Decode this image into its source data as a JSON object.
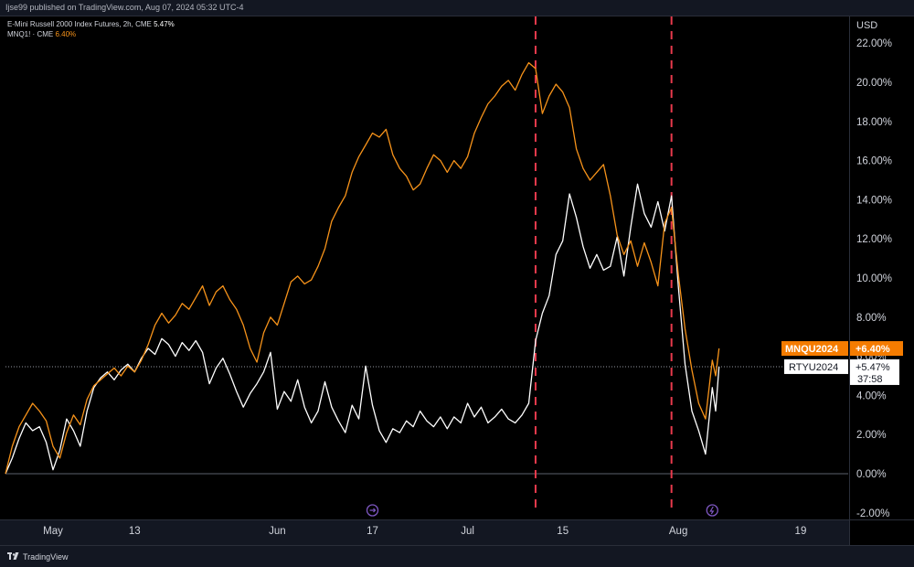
{
  "header": {
    "publish_line": "Ijse99 published on TradingView.com, Aug 07, 2024 05:32 UTC-4"
  },
  "legend": {
    "series1_title": "E-Mini Russell 2000 Index Futures, 2h, CME",
    "series1_value": "5.47%",
    "series2_title": "MNQ1! · CME",
    "series2_value": "6.40%"
  },
  "axis": {
    "currency": "USD"
  },
  "footer": {
    "brand": "TradingView"
  },
  "colors": {
    "background": "#000000",
    "rty_line": "#ffffff",
    "mnq_line": "#f7931a",
    "event_line": "#e83a4c",
    "zero_line": "#5d606b",
    "tag_orange": "#f57c00",
    "event_icon": "#7e57c2"
  },
  "chart_data": {
    "type": "line",
    "y_unit": "%",
    "ylim": [
      -2,
      22.5
    ],
    "yticks": [
      "22.00%",
      "20.00%",
      "18.00%",
      "16.00%",
      "14.00%",
      "12.00%",
      "10.00%",
      "8.00%",
      "6.00%",
      "4.00%",
      "2.00%",
      "0.00%",
      "-2.00%"
    ],
    "ytick_values": [
      22,
      20,
      18,
      16,
      14,
      12,
      10,
      8,
      6,
      4,
      2,
      0,
      -2
    ],
    "xlim": [
      "2024-04-24",
      "2024-08-26"
    ],
    "xticks": [
      {
        "label": "May",
        "date": "2024-05-01"
      },
      {
        "label": "13",
        "date": "2024-05-13"
      },
      {
        "label": "Jun",
        "date": "2024-06-03"
      },
      {
        "label": "17",
        "date": "2024-06-17"
      },
      {
        "label": "Jul",
        "date": "2024-07-01"
      },
      {
        "label": "15",
        "date": "2024-07-15"
      },
      {
        "label": "Aug",
        "date": "2024-08-01"
      },
      {
        "label": "19",
        "date": "2024-08-19"
      }
    ],
    "vertical_markers": [
      "2024-07-11",
      "2024-07-31"
    ],
    "event_icons": [
      "2024-06-17",
      "2024-08-06"
    ],
    "series": [
      {
        "name": "RTYU2024",
        "tag_value": "+5.47%",
        "countdown": "37:58",
        "last_value": 5.47,
        "color": "#ffffff",
        "points": [
          [
            "2024-04-24",
            0.0
          ],
          [
            "2024-04-25",
            0.8
          ],
          [
            "2024-04-26",
            1.8
          ],
          [
            "2024-04-27",
            2.6
          ],
          [
            "2024-04-28",
            2.2
          ],
          [
            "2024-04-29",
            2.4
          ],
          [
            "2024-04-30",
            1.6
          ],
          [
            "2024-05-01",
            0.2
          ],
          [
            "2024-05-02",
            1.2
          ],
          [
            "2024-05-03",
            2.8
          ],
          [
            "2024-05-04",
            2.2
          ],
          [
            "2024-05-05",
            1.4
          ],
          [
            "2024-05-06",
            3.2
          ],
          [
            "2024-05-07",
            4.4
          ],
          [
            "2024-05-08",
            4.9
          ],
          [
            "2024-05-09",
            5.2
          ],
          [
            "2024-05-10",
            4.8
          ],
          [
            "2024-05-11",
            5.3
          ],
          [
            "2024-05-12",
            5.6
          ],
          [
            "2024-05-13",
            5.2
          ],
          [
            "2024-05-14",
            5.9
          ],
          [
            "2024-05-15",
            6.4
          ],
          [
            "2024-05-16",
            6.1
          ],
          [
            "2024-05-17",
            6.9
          ],
          [
            "2024-05-18",
            6.6
          ],
          [
            "2024-05-19",
            6.0
          ],
          [
            "2024-05-20",
            6.7
          ],
          [
            "2024-05-21",
            6.3
          ],
          [
            "2024-05-22",
            6.8
          ],
          [
            "2024-05-23",
            6.2
          ],
          [
            "2024-05-24",
            4.6
          ],
          [
            "2024-05-25",
            5.4
          ],
          [
            "2024-05-26",
            5.9
          ],
          [
            "2024-05-27",
            5.1
          ],
          [
            "2024-05-28",
            4.2
          ],
          [
            "2024-05-29",
            3.4
          ],
          [
            "2024-05-30",
            4.1
          ],
          [
            "2024-05-31",
            4.6
          ],
          [
            "2024-06-01",
            5.2
          ],
          [
            "2024-06-02",
            6.2
          ],
          [
            "2024-06-03",
            3.3
          ],
          [
            "2024-06-04",
            4.2
          ],
          [
            "2024-06-05",
            3.7
          ],
          [
            "2024-06-06",
            4.8
          ],
          [
            "2024-06-07",
            3.4
          ],
          [
            "2024-06-08",
            2.6
          ],
          [
            "2024-06-09",
            3.2
          ],
          [
            "2024-06-10",
            4.7
          ],
          [
            "2024-06-11",
            3.4
          ],
          [
            "2024-06-12",
            2.7
          ],
          [
            "2024-06-13",
            2.1
          ],
          [
            "2024-06-14",
            3.5
          ],
          [
            "2024-06-15",
            2.8
          ],
          [
            "2024-06-16",
            5.5
          ],
          [
            "2024-06-17",
            3.5
          ],
          [
            "2024-06-18",
            2.2
          ],
          [
            "2024-06-19",
            1.6
          ],
          [
            "2024-06-20",
            2.3
          ],
          [
            "2024-06-21",
            2.1
          ],
          [
            "2024-06-22",
            2.7
          ],
          [
            "2024-06-23",
            2.4
          ],
          [
            "2024-06-24",
            3.2
          ],
          [
            "2024-06-25",
            2.7
          ],
          [
            "2024-06-26",
            2.4
          ],
          [
            "2024-06-27",
            2.9
          ],
          [
            "2024-06-28",
            2.3
          ],
          [
            "2024-06-29",
            2.9
          ],
          [
            "2024-06-30",
            2.6
          ],
          [
            "2024-07-01",
            3.6
          ],
          [
            "2024-07-02",
            2.9
          ],
          [
            "2024-07-03",
            3.4
          ],
          [
            "2024-07-04",
            2.6
          ],
          [
            "2024-07-05",
            2.9
          ],
          [
            "2024-07-06",
            3.3
          ],
          [
            "2024-07-07",
            2.8
          ],
          [
            "2024-07-08",
            2.6
          ],
          [
            "2024-07-09",
            3.0
          ],
          [
            "2024-07-10",
            3.6
          ],
          [
            "2024-07-11",
            6.8
          ],
          [
            "2024-07-12",
            8.2
          ],
          [
            "2024-07-13",
            9.1
          ],
          [
            "2024-07-14",
            11.2
          ],
          [
            "2024-07-15",
            11.9
          ],
          [
            "2024-07-16",
            14.3
          ],
          [
            "2024-07-17",
            13.1
          ],
          [
            "2024-07-18",
            11.6
          ],
          [
            "2024-07-19",
            10.5
          ],
          [
            "2024-07-20",
            11.2
          ],
          [
            "2024-07-21",
            10.4
          ],
          [
            "2024-07-22",
            10.6
          ],
          [
            "2024-07-23",
            12.1
          ],
          [
            "2024-07-24",
            10.1
          ],
          [
            "2024-07-25",
            12.6
          ],
          [
            "2024-07-26",
            14.8
          ],
          [
            "2024-07-27",
            13.3
          ],
          [
            "2024-07-28",
            12.6
          ],
          [
            "2024-07-29",
            13.9
          ],
          [
            "2024-07-30",
            12.4
          ],
          [
            "2024-07-31",
            14.2
          ],
          [
            "2024-08-01",
            9.6
          ],
          [
            "2024-08-02",
            5.6
          ],
          [
            "2024-08-03",
            3.2
          ],
          [
            "2024-08-04",
            2.2
          ],
          [
            "2024-08-05",
            1.0
          ],
          [
            "2024-08-06",
            4.4
          ],
          [
            "2024-08-06T12",
            3.2
          ],
          [
            "2024-08-07",
            5.47
          ]
        ]
      },
      {
        "name": "MNQU2024",
        "tag_value": "+6.40%",
        "last_value": 6.4,
        "color": "#f7931a",
        "points": [
          [
            "2024-04-24",
            0.0
          ],
          [
            "2024-04-25",
            1.4
          ],
          [
            "2024-04-26",
            2.4
          ],
          [
            "2024-04-27",
            3.0
          ],
          [
            "2024-04-28",
            3.6
          ],
          [
            "2024-04-29",
            3.2
          ],
          [
            "2024-04-30",
            2.7
          ],
          [
            "2024-05-01",
            1.4
          ],
          [
            "2024-05-02",
            0.8
          ],
          [
            "2024-05-03",
            2.1
          ],
          [
            "2024-05-04",
            3.0
          ],
          [
            "2024-05-05",
            2.5
          ],
          [
            "2024-05-06",
            3.8
          ],
          [
            "2024-05-07",
            4.5
          ],
          [
            "2024-05-08",
            4.8
          ],
          [
            "2024-05-09",
            5.1
          ],
          [
            "2024-05-10",
            5.4
          ],
          [
            "2024-05-11",
            5.0
          ],
          [
            "2024-05-12",
            5.5
          ],
          [
            "2024-05-13",
            5.2
          ],
          [
            "2024-05-14",
            5.8
          ],
          [
            "2024-05-15",
            6.6
          ],
          [
            "2024-05-16",
            7.6
          ],
          [
            "2024-05-17",
            8.2
          ],
          [
            "2024-05-18",
            7.7
          ],
          [
            "2024-05-19",
            8.1
          ],
          [
            "2024-05-20",
            8.7
          ],
          [
            "2024-05-21",
            8.4
          ],
          [
            "2024-05-22",
            9.0
          ],
          [
            "2024-05-23",
            9.6
          ],
          [
            "2024-05-24",
            8.6
          ],
          [
            "2024-05-25",
            9.3
          ],
          [
            "2024-05-26",
            9.6
          ],
          [
            "2024-05-27",
            8.9
          ],
          [
            "2024-05-28",
            8.4
          ],
          [
            "2024-05-29",
            7.6
          ],
          [
            "2024-05-30",
            6.4
          ],
          [
            "2024-05-31",
            5.7
          ],
          [
            "2024-06-01",
            7.2
          ],
          [
            "2024-06-02",
            8.0
          ],
          [
            "2024-06-03",
            7.6
          ],
          [
            "2024-06-04",
            8.7
          ],
          [
            "2024-06-05",
            9.8
          ],
          [
            "2024-06-06",
            10.1
          ],
          [
            "2024-06-07",
            9.7
          ],
          [
            "2024-06-08",
            9.9
          ],
          [
            "2024-06-09",
            10.6
          ],
          [
            "2024-06-10",
            11.5
          ],
          [
            "2024-06-11",
            12.9
          ],
          [
            "2024-06-12",
            13.6
          ],
          [
            "2024-06-13",
            14.2
          ],
          [
            "2024-06-14",
            15.4
          ],
          [
            "2024-06-15",
            16.2
          ],
          [
            "2024-06-16",
            16.8
          ],
          [
            "2024-06-17",
            17.4
          ],
          [
            "2024-06-18",
            17.2
          ],
          [
            "2024-06-19",
            17.6
          ],
          [
            "2024-06-20",
            16.3
          ],
          [
            "2024-06-21",
            15.6
          ],
          [
            "2024-06-22",
            15.2
          ],
          [
            "2024-06-23",
            14.5
          ],
          [
            "2024-06-24",
            14.8
          ],
          [
            "2024-06-25",
            15.6
          ],
          [
            "2024-06-26",
            16.3
          ],
          [
            "2024-06-27",
            16.0
          ],
          [
            "2024-06-28",
            15.4
          ],
          [
            "2024-06-29",
            16.0
          ],
          [
            "2024-06-30",
            15.6
          ],
          [
            "2024-07-01",
            16.2
          ],
          [
            "2024-07-02",
            17.4
          ],
          [
            "2024-07-03",
            18.2
          ],
          [
            "2024-07-04",
            18.9
          ],
          [
            "2024-07-05",
            19.3
          ],
          [
            "2024-07-06",
            19.8
          ],
          [
            "2024-07-07",
            20.1
          ],
          [
            "2024-07-08",
            19.6
          ],
          [
            "2024-07-09",
            20.4
          ],
          [
            "2024-07-10",
            21.0
          ],
          [
            "2024-07-11",
            20.7
          ],
          [
            "2024-07-12",
            18.4
          ],
          [
            "2024-07-13",
            19.3
          ],
          [
            "2024-07-14",
            19.9
          ],
          [
            "2024-07-15",
            19.5
          ],
          [
            "2024-07-16",
            18.7
          ],
          [
            "2024-07-17",
            16.6
          ],
          [
            "2024-07-18",
            15.6
          ],
          [
            "2024-07-19",
            15.0
          ],
          [
            "2024-07-20",
            15.4
          ],
          [
            "2024-07-21",
            15.8
          ],
          [
            "2024-07-22",
            14.2
          ],
          [
            "2024-07-23",
            12.2
          ],
          [
            "2024-07-24",
            11.2
          ],
          [
            "2024-07-25",
            11.9
          ],
          [
            "2024-07-26",
            10.6
          ],
          [
            "2024-07-27",
            11.8
          ],
          [
            "2024-07-28",
            10.8
          ],
          [
            "2024-07-29",
            9.6
          ],
          [
            "2024-07-30",
            12.8
          ],
          [
            "2024-07-31",
            13.6
          ],
          [
            "2024-08-01",
            10.2
          ],
          [
            "2024-08-02",
            7.4
          ],
          [
            "2024-08-03",
            5.3
          ],
          [
            "2024-08-04",
            3.6
          ],
          [
            "2024-08-05",
            2.8
          ],
          [
            "2024-08-06",
            5.8
          ],
          [
            "2024-08-06T12",
            5.0
          ],
          [
            "2024-08-07",
            6.4
          ]
        ]
      }
    ]
  }
}
